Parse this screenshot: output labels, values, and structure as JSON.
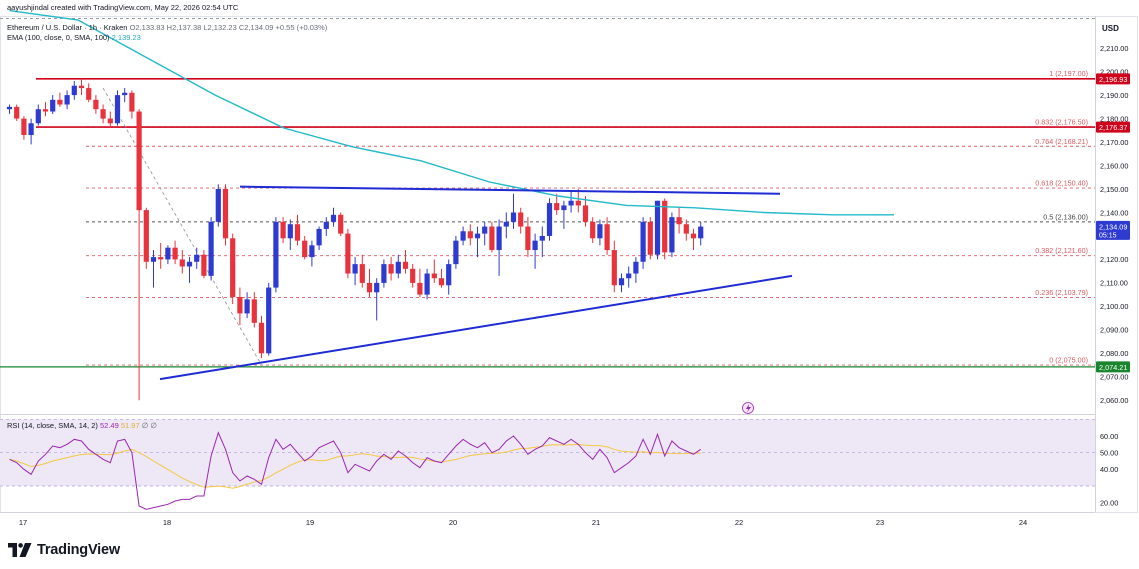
{
  "header": {
    "creator": "aayushjindal created with TradingView.com, May 22, 2026 02:54 UTC",
    "symbol_line": "Ethereum / U.S. Dollar · 1h · Kraken",
    "ohlc": "O2,133.83 H2,137.38 L2,132.23 C2,134.09 +0.55 (+0.03%)",
    "ema_label": "EMA (100, close, 0, SMA, 100)",
    "ema_value": "2,139.23",
    "rsi_label": "RSI (14, close, SMA, 14, 2)",
    "rsi_value": "52.49",
    "rsi_ma_value": "51.97",
    "rsi_extra": "∅ ∅"
  },
  "branding": {
    "name": "TradingView"
  },
  "colors": {
    "bull": "#2e3bd1",
    "bear": "#e8333c",
    "ema": "#22b9c9",
    "trendline": "#1f2bd4",
    "resistance": "#d0021b",
    "support": "#19852e",
    "fib": "#e05a62",
    "rsi_line": "#9c27b0",
    "rsi_ma": "#f5c842",
    "rsi_band": "#ede7f6"
  },
  "chart_data": {
    "type": "candlestick",
    "currency": "USD",
    "y_range": [
      2055,
      2222
    ],
    "y_ticks": [
      "2,060.00",
      "2,070.00",
      "2,080.00",
      "2,090.00",
      "2,100.00",
      "2,110.00",
      "2,120.00",
      "2,130.00",
      "2,140.00",
      "2,150.00",
      "2,160.00",
      "2,170.00",
      "2,180.00",
      "2,190.00",
      "2,200.00",
      "2,210.00"
    ],
    "x_labels": [
      "17",
      "18",
      "19",
      "20",
      "21",
      "22",
      "23",
      "24"
    ],
    "price_tags": [
      {
        "label": "2,196.93",
        "value": 2196.93,
        "kind": "resistance"
      },
      {
        "label": "2,176.37",
        "value": 2176.37,
        "kind": "resistance"
      },
      {
        "label": "2,134.09",
        "sub": "05:15",
        "value": 2134.09,
        "kind": "current"
      },
      {
        "label": "2,074.21",
        "value": 2074.21,
        "kind": "support"
      }
    ],
    "fib_levels": [
      {
        "label": "1 (2,197.00)",
        "value": 2197.0
      },
      {
        "label": "0.832 (2,176.50)",
        "value": 2176.5
      },
      {
        "label": "0.764 (2,168.21)",
        "value": 2168.21
      },
      {
        "label": "0.618 (2,150.40)",
        "value": 2150.4
      },
      {
        "label": "0.5 (2,136.00)",
        "value": 2136.0
      },
      {
        "label": "0.382 (2,121.60)",
        "value": 2121.6
      },
      {
        "label": "0.236 (2,103.79)",
        "value": 2103.79
      },
      {
        "label": "0 (2,075.00)",
        "value": 2075.0
      }
    ],
    "candles": [
      [
        2184,
        2186,
        2182,
        2185
      ],
      [
        2185,
        2186,
        2179,
        2180
      ],
      [
        2180,
        2181,
        2171,
        2173
      ],
      [
        2173,
        2180,
        2169,
        2178
      ],
      [
        2178,
        2186,
        2177,
        2184
      ],
      [
        2184,
        2187,
        2181,
        2183
      ],
      [
        2183,
        2190,
        2182,
        2188
      ],
      [
        2188,
        2191,
        2185,
        2186
      ],
      [
        2186,
        2192,
        2184,
        2190
      ],
      [
        2190,
        2196,
        2188,
        2194
      ],
      [
        2194,
        2197,
        2190,
        2193
      ],
      [
        2193,
        2195,
        2187,
        2188
      ],
      [
        2188,
        2190,
        2182,
        2184
      ],
      [
        2184,
        2186,
        2178,
        2180
      ],
      [
        2180,
        2183,
        2176,
        2178
      ],
      [
        2178,
        2192,
        2177,
        2190
      ],
      [
        2190,
        2193,
        2187,
        2191
      ],
      [
        2191,
        2192,
        2180,
        2183
      ],
      [
        2183,
        2184,
        2060,
        2141
      ],
      [
        2141,
        2142,
        2116,
        2119
      ],
      [
        2119,
        2124,
        2108,
        2121
      ],
      [
        2121,
        2127,
        2116,
        2120
      ],
      [
        2120,
        2126,
        2118,
        2125
      ],
      [
        2125,
        2128,
        2118,
        2120
      ],
      [
        2120,
        2124,
        2114,
        2117
      ],
      [
        2117,
        2121,
        2110,
        2119
      ],
      [
        2119,
        2125,
        2116,
        2122
      ],
      [
        2122,
        2124,
        2112,
        2113
      ],
      [
        2113,
        2138,
        2111,
        2136
      ],
      [
        2136,
        2152,
        2134,
        2150
      ],
      [
        2150,
        2152,
        2126,
        2129
      ],
      [
        2129,
        2131,
        2101,
        2104
      ],
      [
        2104,
        2108,
        2092,
        2097
      ],
      [
        2097,
        2106,
        2095,
        2103
      ],
      [
        2103,
        2106,
        2091,
        2093
      ],
      [
        2093,
        2096,
        2078,
        2080
      ],
      [
        2080,
        2110,
        2079,
        2108
      ],
      [
        2108,
        2138,
        2106,
        2136
      ],
      [
        2136,
        2138,
        2127,
        2129
      ],
      [
        2129,
        2137,
        2124,
        2135
      ],
      [
        2135,
        2139,
        2126,
        2128
      ],
      [
        2128,
        2130,
        2120,
        2121
      ],
      [
        2121,
        2128,
        2117,
        2126
      ],
      [
        2126,
        2134,
        2124,
        2133
      ],
      [
        2133,
        2138,
        2130,
        2136
      ],
      [
        2136,
        2142,
        2134,
        2139
      ],
      [
        2139,
        2140,
        2130,
        2131
      ],
      [
        2131,
        2133,
        2112,
        2114
      ],
      [
        2114,
        2121,
        2109,
        2118
      ],
      [
        2118,
        2122,
        2108,
        2110
      ],
      [
        2110,
        2116,
        2104,
        2106
      ],
      [
        2106,
        2112,
        2094,
        2110
      ],
      [
        2110,
        2120,
        2108,
        2118
      ],
      [
        2118,
        2121,
        2111,
        2114
      ],
      [
        2114,
        2122,
        2112,
        2119
      ],
      [
        2119,
        2124,
        2114,
        2116
      ],
      [
        2116,
        2118,
        2108,
        2110
      ],
      [
        2110,
        2116,
        2104,
        2105
      ],
      [
        2105,
        2116,
        2103,
        2114
      ],
      [
        2114,
        2120,
        2110,
        2112
      ],
      [
        2112,
        2116,
        2108,
        2109
      ],
      [
        2109,
        2120,
        2105,
        2118
      ],
      [
        2118,
        2130,
        2116,
        2128
      ],
      [
        2128,
        2134,
        2126,
        2132
      ],
      [
        2132,
        2135,
        2126,
        2129
      ],
      [
        2129,
        2134,
        2121,
        2131
      ],
      [
        2131,
        2136,
        2126,
        2134
      ],
      [
        2134,
        2136,
        2123,
        2124
      ],
      [
        2124,
        2137,
        2113,
        2134
      ],
      [
        2134,
        2140,
        2129,
        2136
      ],
      [
        2136,
        2148,
        2133,
        2140
      ],
      [
        2140,
        2142,
        2131,
        2134
      ],
      [
        2134,
        2138,
        2121,
        2124
      ],
      [
        2124,
        2131,
        2116,
        2128
      ],
      [
        2128,
        2134,
        2121,
        2130
      ],
      [
        2130,
        2146,
        2128,
        2144
      ],
      [
        2144,
        2148,
        2139,
        2141
      ],
      [
        2141,
        2145,
        2133,
        2143
      ],
      [
        2143,
        2149,
        2140,
        2145
      ],
      [
        2145,
        2150,
        2140,
        2143
      ],
      [
        2143,
        2147,
        2134,
        2136
      ],
      [
        2136,
        2138,
        2127,
        2129
      ],
      [
        2129,
        2137,
        2126,
        2135
      ],
      [
        2135,
        2138,
        2122,
        2124
      ],
      [
        2124,
        2128,
        2106,
        2109
      ],
      [
        2109,
        2114,
        2106,
        2112
      ],
      [
        2112,
        2117,
        2108,
        2114
      ],
      [
        2114,
        2121,
        2110,
        2119
      ],
      [
        2119,
        2138,
        2116,
        2136
      ],
      [
        2136,
        2138,
        2120,
        2122
      ],
      [
        2122,
        2145,
        2120,
        2145
      ],
      [
        2145,
        2146,
        2120,
        2123
      ],
      [
        2123,
        2140,
        2121,
        2138
      ],
      [
        2138,
        2142,
        2131,
        2135
      ],
      [
        2135,
        2137,
        2128,
        2131
      ],
      [
        2131,
        2133,
        2124,
        2129
      ],
      [
        2129,
        2136,
        2126,
        2134
      ]
    ],
    "ema": [
      [
        0,
        2226
      ],
      [
        20,
        2222
      ],
      [
        40,
        2206
      ],
      [
        60,
        2190
      ],
      [
        80,
        2176
      ],
      [
        100,
        2168
      ],
      [
        120,
        2162
      ],
      [
        140,
        2153
      ],
      [
        160,
        2147
      ],
      [
        180,
        2143
      ],
      [
        200,
        2142
      ],
      [
        220,
        2140
      ],
      [
        240,
        2139
      ],
      [
        258,
        2139
      ]
    ],
    "trendlines": [
      {
        "from": [
          81,
          2069
        ],
        "to": [
          272,
          2113
        ],
        "label": "rising support"
      },
      {
        "from": [
          118,
          2151
        ],
        "to": [
          265,
          2148
        ],
        "label": "resistance"
      }
    ],
    "rsi": {
      "y_range": [
        15,
        72
      ],
      "ticks": [
        "20.00",
        "40.00",
        "50.00",
        "60.00"
      ],
      "band": [
        30,
        70
      ],
      "values": [
        46,
        44,
        40,
        37,
        45,
        49,
        54,
        53,
        55,
        58,
        57,
        52,
        49,
        46,
        44,
        57,
        58,
        50,
        18,
        16,
        17,
        18,
        19,
        21,
        22,
        22,
        24,
        24,
        48,
        62,
        52,
        38,
        33,
        36,
        34,
        31,
        47,
        58,
        52,
        55,
        50,
        45,
        48,
        53,
        55,
        57,
        50,
        38,
        43,
        41,
        39,
        45,
        49,
        46,
        51,
        48,
        44,
        41,
        47,
        45,
        44,
        49,
        54,
        58,
        55,
        53,
        56,
        50,
        52,
        57,
        60,
        55,
        49,
        52,
        54,
        59,
        57,
        55,
        58,
        55,
        50,
        46,
        52,
        47,
        38,
        41,
        44,
        48,
        58,
        49,
        61,
        48,
        57,
        53,
        51,
        49,
        52
      ]
    }
  }
}
